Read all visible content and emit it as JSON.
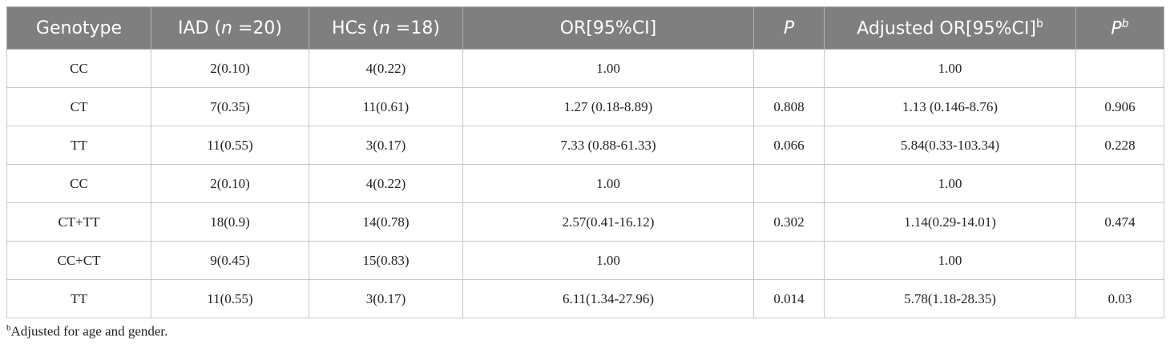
{
  "table": {
    "header": [
      [
        "Genotype"
      ],
      [
        "IAD (",
        "n",
        " =20)"
      ],
      [
        "HCs (",
        "n",
        " =18)"
      ],
      [
        "OR[95%CI]"
      ],
      [
        "P"
      ],
      [
        "Adjusted OR[95%CI]",
        "b"
      ],
      [
        "P",
        "b"
      ]
    ],
    "rows": [
      [
        "CC",
        "2(0.10)",
        "4(0.22)",
        "1.00",
        null,
        "1.00",
        null
      ],
      [
        "CT",
        "7(0.35)",
        "11(0.61)",
        "1.27 (0.18-8.89)",
        "0.808",
        "1.13 (0.146-8.76)",
        "0.906"
      ],
      [
        "TT",
        "11(0.55)",
        "3(0.17)",
        "7.33 (0.88-61.33)",
        "0.066",
        "5.84(0.33-103.34)",
        "0.228"
      ],
      [
        "CC",
        "2(0.10)",
        "4(0.22)",
        "1.00",
        null,
        "1.00",
        null
      ],
      [
        "CT+TT",
        "18(0.9)",
        "14(0.78)",
        "2.57(0.41-16.12)",
        "0.302",
        "1.14(0.29-14.01)",
        "0.474"
      ],
      [
        "CC+CT",
        "9(0.45)",
        "15(0.83)",
        "1.00",
        null,
        "1.00",
        null
      ],
      [
        "TT",
        "11(0.55)",
        "3(0.17)",
        "6.11(1.34-27.96)",
        "0.014",
        "5.78(1.18-28.35)",
        "0.03"
      ]
    ]
  },
  "footnote": {
    "marker": "b",
    "text": "Adjusted for age and gender."
  }
}
